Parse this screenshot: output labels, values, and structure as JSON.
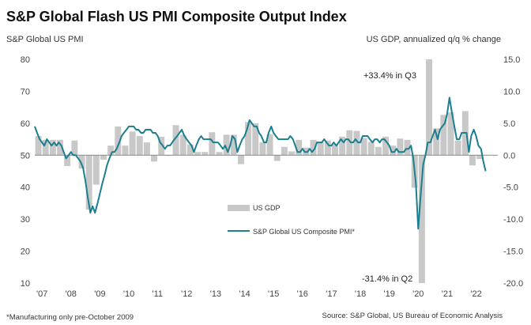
{
  "chart_data": {
    "type": "bar+line",
    "title": "S&P Global Flash US PMI Composite Output Index",
    "left_axis_label": "S&P Global US PMI",
    "right_axis_label": "US GDP, annualized q/q % change",
    "left_ylim": [
      10,
      80
    ],
    "left_ticks": [
      "80",
      "70",
      "60",
      "50",
      "40",
      "30",
      "20",
      "10"
    ],
    "right_ylim": [
      -20,
      15
    ],
    "right_ticks": [
      "15.0",
      "10.0",
      "5.0",
      "0.0",
      "-5.0",
      "-10.0",
      "-15.0",
      "-20.0"
    ],
    "x_ticks": [
      "'07",
      "'08",
      "'09",
      "'10",
      "'11",
      "'12",
      "'13",
      "'14",
      "'15",
      "'16",
      "'17",
      "'18",
      "'19",
      "'20",
      "'21",
      "'22"
    ],
    "x_range": [
      2007.0,
      2023.0
    ],
    "grid": false,
    "legend_position": "center",
    "series": [
      {
        "name": "US GDP",
        "kind": "bar",
        "axis": "right",
        "color": "#c8c8c8",
        "points": [
          {
            "x": 2007.125,
            "y": 3.0
          },
          {
            "x": 2007.375,
            "y": 2.4
          },
          {
            "x": 2007.625,
            "y": 2.4
          },
          {
            "x": 2007.875,
            "y": 2.4
          },
          {
            "x": 2008.125,
            "y": -1.7
          },
          {
            "x": 2008.375,
            "y": 2.3
          },
          {
            "x": 2008.625,
            "y": -2.1
          },
          {
            "x": 2008.875,
            "y": -8.5
          },
          {
            "x": 2009.125,
            "y": -4.6
          },
          {
            "x": 2009.375,
            "y": -0.7
          },
          {
            "x": 2009.625,
            "y": 1.5
          },
          {
            "x": 2009.875,
            "y": 4.5
          },
          {
            "x": 2010.125,
            "y": 1.5
          },
          {
            "x": 2010.375,
            "y": 3.7
          },
          {
            "x": 2010.625,
            "y": 3.0
          },
          {
            "x": 2010.875,
            "y": 2.0
          },
          {
            "x": 2011.125,
            "y": -1.0
          },
          {
            "x": 2011.375,
            "y": 2.9
          },
          {
            "x": 2011.625,
            "y": -0.1
          },
          {
            "x": 2011.875,
            "y": 4.7
          },
          {
            "x": 2012.125,
            "y": 3.2
          },
          {
            "x": 2012.375,
            "y": 1.7
          },
          {
            "x": 2012.625,
            "y": 0.5
          },
          {
            "x": 2012.875,
            "y": 0.5
          },
          {
            "x": 2013.125,
            "y": 3.6
          },
          {
            "x": 2013.375,
            "y": 0.5
          },
          {
            "x": 2013.625,
            "y": 3.2
          },
          {
            "x": 2013.875,
            "y": 3.2
          },
          {
            "x": 2014.125,
            "y": -1.4
          },
          {
            "x": 2014.375,
            "y": 5.2
          },
          {
            "x": 2014.625,
            "y": 5.0
          },
          {
            "x": 2014.875,
            "y": 2.0
          },
          {
            "x": 2015.125,
            "y": 3.3
          },
          {
            "x": 2015.375,
            "y": -0.9
          },
          {
            "x": 2015.625,
            "y": 1.3
          },
          {
            "x": 2015.875,
            "y": 0.6
          },
          {
            "x": 2016.125,
            "y": 2.4
          },
          {
            "x": 2016.375,
            "y": 1.2
          },
          {
            "x": 2016.625,
            "y": 2.4
          },
          {
            "x": 2016.875,
            "y": 2.0
          },
          {
            "x": 2017.125,
            "y": 2.3
          },
          {
            "x": 2017.375,
            "y": 1.7
          },
          {
            "x": 2017.625,
            "y": 2.9
          },
          {
            "x": 2017.875,
            "y": 3.9
          },
          {
            "x": 2018.125,
            "y": 3.8
          },
          {
            "x": 2018.375,
            "y": 2.7
          },
          {
            "x": 2018.625,
            "y": 2.1
          },
          {
            "x": 2018.875,
            "y": 1.3
          },
          {
            "x": 2019.125,
            "y": 2.9
          },
          {
            "x": 2019.375,
            "y": 1.5
          },
          {
            "x": 2019.625,
            "y": 2.6
          },
          {
            "x": 2019.875,
            "y": 2.4
          },
          {
            "x": 2020.125,
            "y": -5.1
          },
          {
            "x": 2020.375,
            "y": -31.4
          },
          {
            "x": 2020.625,
            "y": 33.4
          },
          {
            "x": 2020.875,
            "y": 4.2
          },
          {
            "x": 2021.125,
            "y": 6.3
          },
          {
            "x": 2021.375,
            "y": 6.7
          },
          {
            "x": 2021.625,
            "y": 2.3
          },
          {
            "x": 2021.875,
            "y": 6.9
          },
          {
            "x": 2022.125,
            "y": -1.6
          },
          {
            "x": 2022.375,
            "y": -0.6
          }
        ]
      },
      {
        "name": "S&P Global US Composite PMI*",
        "kind": "line",
        "axis": "left",
        "color": "#1a7f8e",
        "points": [
          {
            "x": 2007.0,
            "y": 59
          },
          {
            "x": 2007.08,
            "y": 57
          },
          {
            "x": 2007.17,
            "y": 55
          },
          {
            "x": 2007.25,
            "y": 54
          },
          {
            "x": 2007.33,
            "y": 53
          },
          {
            "x": 2007.42,
            "y": 55
          },
          {
            "x": 2007.5,
            "y": 54
          },
          {
            "x": 2007.58,
            "y": 53
          },
          {
            "x": 2007.67,
            "y": 54
          },
          {
            "x": 2007.75,
            "y": 53
          },
          {
            "x": 2007.83,
            "y": 54
          },
          {
            "x": 2007.92,
            "y": 53
          },
          {
            "x": 2008.0,
            "y": 51
          },
          {
            "x": 2008.08,
            "y": 49
          },
          {
            "x": 2008.17,
            "y": 50
          },
          {
            "x": 2008.25,
            "y": 51
          },
          {
            "x": 2008.33,
            "y": 50
          },
          {
            "x": 2008.42,
            "y": 50
          },
          {
            "x": 2008.5,
            "y": 49
          },
          {
            "x": 2008.58,
            "y": 48
          },
          {
            "x": 2008.67,
            "y": 46
          },
          {
            "x": 2008.75,
            "y": 42
          },
          {
            "x": 2008.83,
            "y": 37
          },
          {
            "x": 2008.92,
            "y": 32
          },
          {
            "x": 2009.0,
            "y": 34
          },
          {
            "x": 2009.08,
            "y": 32
          },
          {
            "x": 2009.17,
            "y": 35
          },
          {
            "x": 2009.25,
            "y": 38
          },
          {
            "x": 2009.33,
            "y": 41
          },
          {
            "x": 2009.42,
            "y": 44
          },
          {
            "x": 2009.5,
            "y": 47
          },
          {
            "x": 2009.58,
            "y": 49
          },
          {
            "x": 2009.67,
            "y": 51
          },
          {
            "x": 2009.75,
            "y": 51
          },
          {
            "x": 2009.83,
            "y": 52
          },
          {
            "x": 2009.92,
            "y": 54
          },
          {
            "x": 2010.0,
            "y": 56
          },
          {
            "x": 2010.08,
            "y": 57
          },
          {
            "x": 2010.17,
            "y": 58
          },
          {
            "x": 2010.25,
            "y": 59
          },
          {
            "x": 2010.33,
            "y": 59
          },
          {
            "x": 2010.42,
            "y": 59
          },
          {
            "x": 2010.5,
            "y": 58
          },
          {
            "x": 2010.58,
            "y": 58
          },
          {
            "x": 2010.67,
            "y": 57
          },
          {
            "x": 2010.75,
            "y": 57
          },
          {
            "x": 2010.83,
            "y": 58
          },
          {
            "x": 2010.92,
            "y": 58
          },
          {
            "x": 2011.0,
            "y": 58
          },
          {
            "x": 2011.08,
            "y": 57
          },
          {
            "x": 2011.17,
            "y": 57
          },
          {
            "x": 2011.25,
            "y": 56
          },
          {
            "x": 2011.33,
            "y": 54
          },
          {
            "x": 2011.42,
            "y": 53
          },
          {
            "x": 2011.5,
            "y": 52
          },
          {
            "x": 2011.58,
            "y": 53
          },
          {
            "x": 2011.67,
            "y": 53
          },
          {
            "x": 2011.75,
            "y": 54
          },
          {
            "x": 2011.83,
            "y": 55
          },
          {
            "x": 2011.92,
            "y": 56
          },
          {
            "x": 2012.0,
            "y": 57
          },
          {
            "x": 2012.08,
            "y": 58
          },
          {
            "x": 2012.17,
            "y": 56
          },
          {
            "x": 2012.25,
            "y": 55
          },
          {
            "x": 2012.33,
            "y": 54
          },
          {
            "x": 2012.42,
            "y": 53
          },
          {
            "x": 2012.5,
            "y": 51
          },
          {
            "x": 2012.58,
            "y": 53
          },
          {
            "x": 2012.67,
            "y": 55
          },
          {
            "x": 2012.75,
            "y": 56
          },
          {
            "x": 2012.83,
            "y": 55
          },
          {
            "x": 2012.92,
            "y": 55
          },
          {
            "x": 2013.0,
            "y": 55
          },
          {
            "x": 2013.08,
            "y": 55
          },
          {
            "x": 2013.17,
            "y": 54
          },
          {
            "x": 2013.25,
            "y": 54
          },
          {
            "x": 2013.33,
            "y": 54
          },
          {
            "x": 2013.42,
            "y": 53
          },
          {
            "x": 2013.5,
            "y": 52
          },
          {
            "x": 2013.58,
            "y": 53
          },
          {
            "x": 2013.67,
            "y": 51
          },
          {
            "x": 2013.75,
            "y": 53
          },
          {
            "x": 2013.83,
            "y": 56
          },
          {
            "x": 2013.92,
            "y": 55
          },
          {
            "x": 2014.0,
            "y": 51
          },
          {
            "x": 2014.08,
            "y": 53
          },
          {
            "x": 2014.17,
            "y": 55
          },
          {
            "x": 2014.25,
            "y": 56
          },
          {
            "x": 2014.33,
            "y": 58
          },
          {
            "x": 2014.42,
            "y": 61
          },
          {
            "x": 2014.5,
            "y": 60
          },
          {
            "x": 2014.58,
            "y": 59
          },
          {
            "x": 2014.67,
            "y": 59
          },
          {
            "x": 2014.75,
            "y": 57
          },
          {
            "x": 2014.83,
            "y": 56
          },
          {
            "x": 2014.92,
            "y": 54
          },
          {
            "x": 2015.0,
            "y": 54
          },
          {
            "x": 2015.08,
            "y": 57
          },
          {
            "x": 2015.17,
            "y": 59
          },
          {
            "x": 2015.25,
            "y": 57
          },
          {
            "x": 2015.33,
            "y": 56
          },
          {
            "x": 2015.42,
            "y": 55
          },
          {
            "x": 2015.5,
            "y": 55
          },
          {
            "x": 2015.58,
            "y": 55
          },
          {
            "x": 2015.67,
            "y": 55
          },
          {
            "x": 2015.75,
            "y": 55
          },
          {
            "x": 2015.83,
            "y": 56
          },
          {
            "x": 2015.92,
            "y": 55
          },
          {
            "x": 2016.0,
            "y": 53
          },
          {
            "x": 2016.08,
            "y": 51
          },
          {
            "x": 2016.17,
            "y": 51
          },
          {
            "x": 2016.25,
            "y": 52
          },
          {
            "x": 2016.33,
            "y": 51
          },
          {
            "x": 2016.42,
            "y": 51
          },
          {
            "x": 2016.5,
            "y": 52
          },
          {
            "x": 2016.58,
            "y": 51
          },
          {
            "x": 2016.67,
            "y": 52
          },
          {
            "x": 2016.75,
            "y": 54
          },
          {
            "x": 2016.83,
            "y": 54
          },
          {
            "x": 2016.92,
            "y": 54
          },
          {
            "x": 2017.0,
            "y": 55
          },
          {
            "x": 2017.08,
            "y": 54
          },
          {
            "x": 2017.17,
            "y": 53
          },
          {
            "x": 2017.25,
            "y": 53
          },
          {
            "x": 2017.33,
            "y": 54
          },
          {
            "x": 2017.42,
            "y": 53
          },
          {
            "x": 2017.5,
            "y": 54
          },
          {
            "x": 2017.58,
            "y": 55
          },
          {
            "x": 2017.67,
            "y": 54
          },
          {
            "x": 2017.75,
            "y": 55
          },
          {
            "x": 2017.83,
            "y": 55
          },
          {
            "x": 2017.92,
            "y": 54
          },
          {
            "x": 2018.0,
            "y": 54
          },
          {
            "x": 2018.08,
            "y": 55
          },
          {
            "x": 2018.17,
            "y": 54
          },
          {
            "x": 2018.25,
            "y": 54
          },
          {
            "x": 2018.33,
            "y": 56
          },
          {
            "x": 2018.42,
            "y": 56
          },
          {
            "x": 2018.5,
            "y": 56
          },
          {
            "x": 2018.58,
            "y": 55
          },
          {
            "x": 2018.67,
            "y": 54
          },
          {
            "x": 2018.75,
            "y": 55
          },
          {
            "x": 2018.83,
            "y": 55
          },
          {
            "x": 2018.92,
            "y": 54
          },
          {
            "x": 2019.0,
            "y": 55
          },
          {
            "x": 2019.08,
            "y": 55
          },
          {
            "x": 2019.17,
            "y": 54
          },
          {
            "x": 2019.25,
            "y": 53
          },
          {
            "x": 2019.33,
            "y": 51
          },
          {
            "x": 2019.42,
            "y": 51
          },
          {
            "x": 2019.5,
            "y": 52
          },
          {
            "x": 2019.58,
            "y": 51
          },
          {
            "x": 2019.67,
            "y": 51
          },
          {
            "x": 2019.75,
            "y": 51
          },
          {
            "x": 2019.83,
            "y": 52
          },
          {
            "x": 2019.92,
            "y": 52
          },
          {
            "x": 2020.0,
            "y": 53
          },
          {
            "x": 2020.08,
            "y": 49
          },
          {
            "x": 2020.17,
            "y": 41
          },
          {
            "x": 2020.25,
            "y": 27
          },
          {
            "x": 2020.33,
            "y": 37
          },
          {
            "x": 2020.42,
            "y": 47
          },
          {
            "x": 2020.5,
            "y": 50
          },
          {
            "x": 2020.58,
            "y": 54
          },
          {
            "x": 2020.67,
            "y": 54
          },
          {
            "x": 2020.75,
            "y": 56
          },
          {
            "x": 2020.83,
            "y": 58
          },
          {
            "x": 2020.92,
            "y": 55
          },
          {
            "x": 2021.0,
            "y": 58
          },
          {
            "x": 2021.08,
            "y": 59
          },
          {
            "x": 2021.17,
            "y": 60
          },
          {
            "x": 2021.25,
            "y": 63
          },
          {
            "x": 2021.33,
            "y": 68
          },
          {
            "x": 2021.42,
            "y": 63
          },
          {
            "x": 2021.5,
            "y": 59
          },
          {
            "x": 2021.58,
            "y": 55
          },
          {
            "x": 2021.67,
            "y": 55
          },
          {
            "x": 2021.75,
            "y": 57
          },
          {
            "x": 2021.83,
            "y": 57
          },
          {
            "x": 2021.92,
            "y": 57
          },
          {
            "x": 2022.0,
            "y": 51
          },
          {
            "x": 2022.08,
            "y": 56
          },
          {
            "x": 2022.17,
            "y": 58
          },
          {
            "x": 2022.25,
            "y": 56
          },
          {
            "x": 2022.33,
            "y": 53
          },
          {
            "x": 2022.42,
            "y": 52
          },
          {
            "x": 2022.5,
            "y": 48
          },
          {
            "x": 2022.58,
            "y": 45
          }
        ]
      }
    ],
    "annotations": [
      {
        "text": "+33.4% in Q3",
        "x": 2020.625,
        "y_right": 33.4
      },
      {
        "text": "-31.4% in Q2",
        "x": 2020.375,
        "y_right": -31.4
      }
    ],
    "footnote": "*Manufacturing only pre-October 2009",
    "source": "Source: S&P Global, US Bureau of Economic Analysis"
  }
}
